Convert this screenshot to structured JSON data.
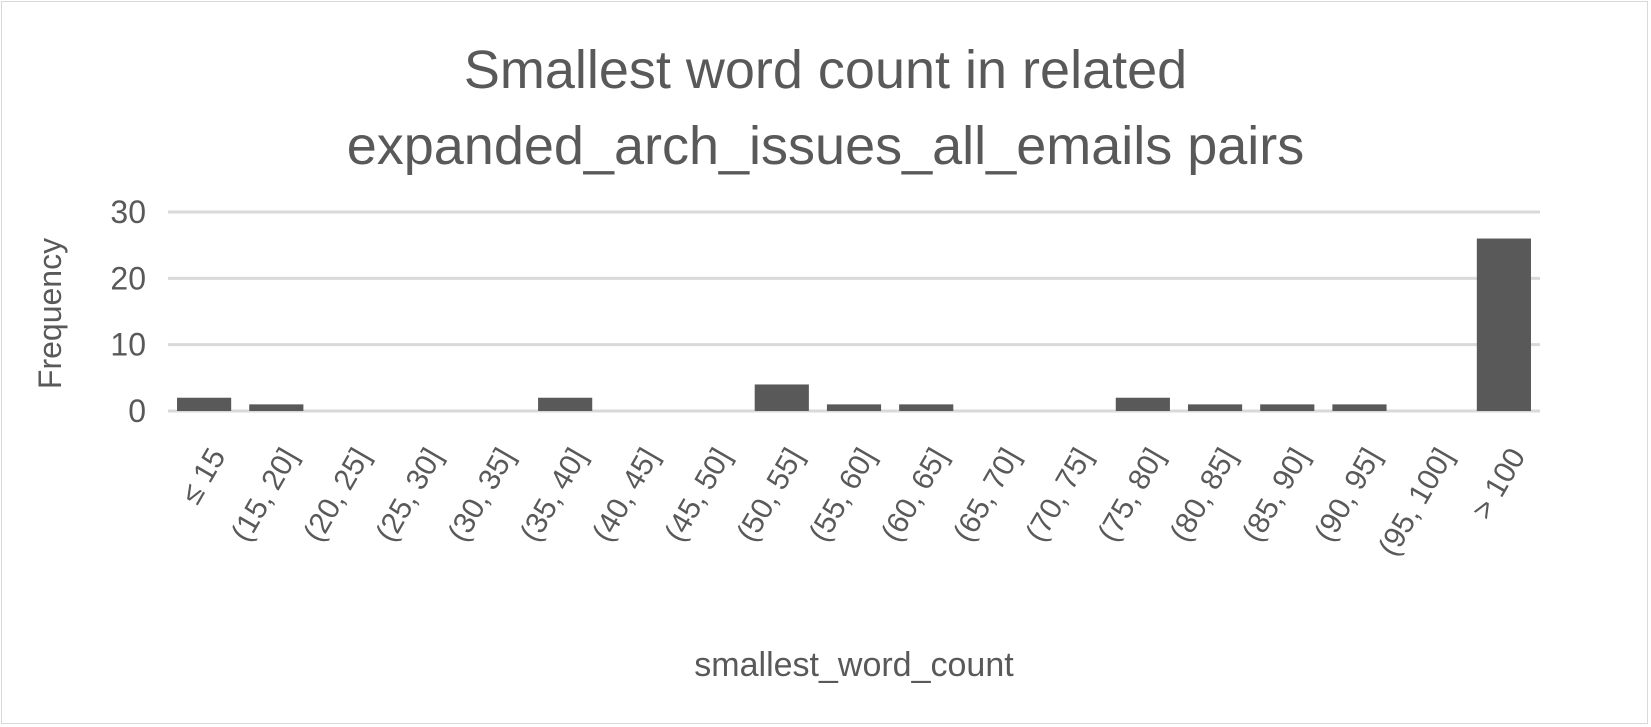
{
  "chart_data": {
    "type": "bar",
    "title_lines": [
      "Smallest word count in related",
      "expanded_arch_issues_all_emails pairs"
    ],
    "xlabel": "smallest_word_count",
    "ylabel": "Frequency",
    "categories": [
      "≤ 15",
      "(15, 20]",
      "(20, 25]",
      "(25, 30]",
      "(30, 35]",
      "(35, 40]",
      "(40, 45]",
      "(45, 50]",
      "(50, 55]",
      "(55, 60]",
      "(60, 65]",
      "(65, 70]",
      "(70, 75]",
      "(75, 80]",
      "(80, 85]",
      "(85, 90]",
      "(90, 95]",
      "(95, 100]",
      "> 100"
    ],
    "values": [
      2,
      1,
      0,
      0,
      0,
      2,
      0,
      0,
      4,
      1,
      1,
      0,
      0,
      2,
      1,
      1,
      1,
      0,
      26
    ],
    "ylim": [
      0,
      30
    ],
    "yticks": [
      0,
      10,
      20,
      30
    ],
    "grid": true,
    "legend": "none",
    "colors": {
      "bar": "#595959",
      "grid": "#d9d9d9",
      "text": "#595959"
    }
  }
}
